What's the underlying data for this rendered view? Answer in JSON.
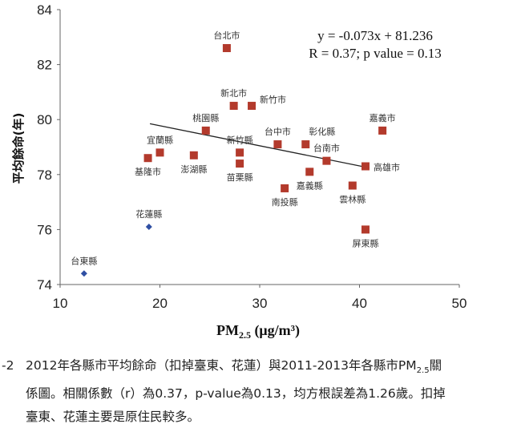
{
  "chart_data": {
    "type": "scatter",
    "xlim": [
      10,
      50
    ],
    "ylim": [
      74,
      84
    ],
    "x_ticks": [
      "10",
      "20",
      "30",
      "40",
      "50"
    ],
    "y_ticks": [
      "74",
      "76",
      "78",
      "80",
      "82",
      "84"
    ],
    "ylabel": "平均餘命(年)",
    "xlabel_main": "PM",
    "xlabel_sub": "2.5",
    "xlabel_unit": " (μg/m³)",
    "equation": "y = -0.073x + 81.236",
    "r_text": "R = 0.37; p value = 0.13",
    "trendline": {
      "slope": -0.073,
      "intercept": 81.236,
      "x_start": 19,
      "x_end": 41
    },
    "colors": {
      "included": "#b33a2c",
      "excluded": "#2f4fa3",
      "line": "#222222"
    },
    "points": [
      {
        "label": "台北市",
        "x": 26.7,
        "y": 82.6,
        "group": "included",
        "label_pos": "above"
      },
      {
        "label": "新北市",
        "x": 27.4,
        "y": 80.5,
        "group": "included",
        "label_pos": "above"
      },
      {
        "label": "新竹市",
        "x": 29.2,
        "y": 80.5,
        "group": "included",
        "label_pos": "right-up"
      },
      {
        "label": "桃園縣",
        "x": 24.6,
        "y": 79.6,
        "group": "included",
        "label_pos": "above"
      },
      {
        "label": "宜蘭縣",
        "x": 20.0,
        "y": 78.8,
        "group": "included",
        "label_pos": "above"
      },
      {
        "label": "基隆市",
        "x": 18.8,
        "y": 78.6,
        "group": "included",
        "label_pos": "below"
      },
      {
        "label": "澎湖縣",
        "x": 23.4,
        "y": 78.7,
        "group": "included",
        "label_pos": "below"
      },
      {
        "label": "新竹縣",
        "x": 28.0,
        "y": 78.8,
        "group": "included",
        "label_pos": "above"
      },
      {
        "label": "苗栗縣",
        "x": 28.0,
        "y": 78.4,
        "group": "included",
        "label_pos": "below"
      },
      {
        "label": "台中市",
        "x": 31.8,
        "y": 79.1,
        "group": "included",
        "label_pos": "above"
      },
      {
        "label": "彰化縣",
        "x": 34.6,
        "y": 79.1,
        "group": "included",
        "label_pos": "above-right"
      },
      {
        "label": "台南市",
        "x": 36.7,
        "y": 78.5,
        "group": "included",
        "label_pos": "above"
      },
      {
        "label": "嘉義市",
        "x": 42.3,
        "y": 79.6,
        "group": "included",
        "label_pos": "above"
      },
      {
        "label": "高雄市",
        "x": 40.6,
        "y": 78.3,
        "group": "included",
        "label_pos": "right"
      },
      {
        "label": "南投縣",
        "x": 32.5,
        "y": 77.5,
        "group": "included",
        "label_pos": "below"
      },
      {
        "label": "嘉義縣",
        "x": 35.0,
        "y": 78.1,
        "group": "included",
        "label_pos": "below"
      },
      {
        "label": "雲林縣",
        "x": 39.3,
        "y": 77.6,
        "group": "included",
        "label_pos": "below"
      },
      {
        "label": "屏東縣",
        "x": 40.6,
        "y": 76.0,
        "group": "included",
        "label_pos": "below"
      },
      {
        "label": "花蓮縣",
        "x": 18.9,
        "y": 76.1,
        "group": "excluded",
        "label_pos": "above"
      },
      {
        "label": "台東縣",
        "x": 12.4,
        "y": 74.4,
        "group": "excluded",
        "label_pos": "above"
      }
    ]
  },
  "caption": {
    "number": "-2",
    "line1_a": "2012年各縣市平均餘命（扣掉臺東、花蓮）與2011-2013年各縣市PM",
    "line1_sub": "2.5",
    "line1_b": "關",
    "line2": "係圖。相關係數（r）為0.37，p-value為0.13，均方根誤差為1.26歲。扣掉",
    "line3": "臺東、花蓮主要是原住民較多。"
  }
}
